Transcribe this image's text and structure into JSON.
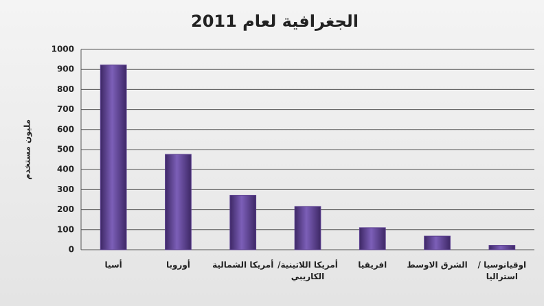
{
  "chart_data": {
    "type": "bar",
    "title": "الجغرافية لعام 2011",
    "y_label": "مليون مستخدم",
    "categories": [
      "أسيا",
      "أوروبا",
      "أمريكا الشمالية",
      "أمريكا اللاتينية/ الكاريبي",
      "افريقيا",
      "الشرق الاوسط",
      "اوقيانوسيا / استراليا"
    ],
    "values": [
      922,
      476,
      272,
      216,
      110,
      68,
      22
    ],
    "color": "#5b3f8f",
    "ylim": [
      0,
      1000
    ],
    "yticks": [
      0,
      100,
      200,
      300,
      400,
      500,
      600,
      700,
      800,
      900,
      1000
    ],
    "grid": true
  }
}
